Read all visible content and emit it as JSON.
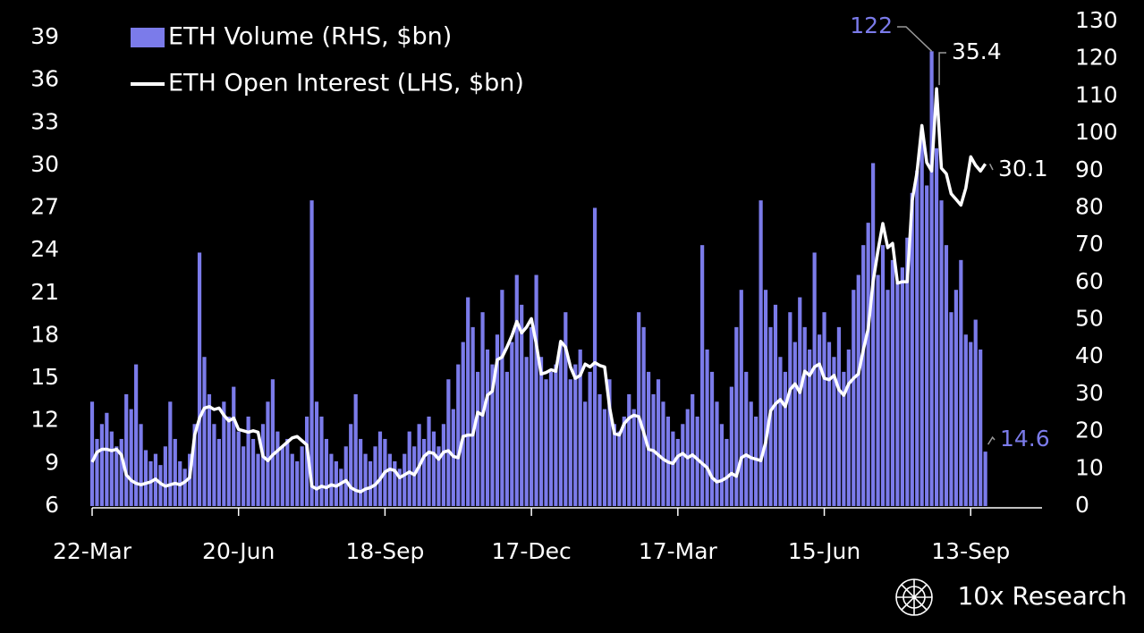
{
  "chart_data": {
    "type": "bar_line",
    "legend": "upper left",
    "brand": "10x Research",
    "categories": [
      "22-Mar",
      null,
      null,
      null,
      null,
      null,
      null,
      null,
      null,
      null,
      null,
      null,
      null,
      null,
      null,
      null,
      null,
      null,
      null,
      null,
      null,
      null,
      null,
      null,
      null,
      null,
      null,
      null,
      null,
      null,
      "20-Jun",
      null,
      null,
      null,
      null,
      null,
      null,
      null,
      null,
      null,
      null,
      null,
      null,
      null,
      null,
      null,
      null,
      null,
      null,
      null,
      null,
      null,
      null,
      null,
      null,
      null,
      null,
      null,
      null,
      null,
      "18-Sep",
      null,
      null,
      null,
      null,
      null,
      null,
      null,
      null,
      null,
      null,
      null,
      null,
      null,
      null,
      null,
      null,
      null,
      null,
      null,
      null,
      null,
      null,
      null,
      null,
      null,
      null,
      null,
      null,
      null,
      "17-Dec",
      null,
      null,
      null,
      null,
      null,
      null,
      null,
      null,
      null,
      null,
      null,
      null,
      null,
      null,
      null,
      null,
      null,
      null,
      null,
      null,
      null,
      null,
      null,
      null,
      null,
      null,
      null,
      null,
      null,
      "17-Mar",
      null,
      null,
      null,
      null,
      null,
      null,
      null,
      null,
      null,
      null,
      null,
      null,
      null,
      null,
      null,
      null,
      null,
      null,
      null,
      null,
      null,
      null,
      null,
      null,
      null,
      null,
      null,
      null,
      null,
      "15-Jun",
      null,
      null,
      null,
      null,
      null,
      null,
      null,
      null,
      null,
      null,
      null,
      null,
      null,
      null,
      null,
      null,
      null,
      null,
      null,
      null,
      null,
      null,
      null,
      null,
      null,
      null,
      null,
      null,
      null,
      "13-Sep",
      null,
      null,
      null
    ],
    "series": [
      {
        "name": "ETH Volume (RHS, $bn)",
        "color": "#7b7bea",
        "axis": "y2",
        "values": [
          28,
          18,
          22,
          25,
          20,
          16,
          18,
          30,
          26,
          38,
          22,
          15,
          12,
          14,
          11,
          16,
          28,
          18,
          12,
          10,
          14,
          22,
          68,
          40,
          30,
          22,
          18,
          28,
          24,
          32,
          20,
          16,
          24,
          18,
          14,
          22,
          28,
          34,
          20,
          16,
          18,
          14,
          12,
          16,
          24,
          82,
          28,
          24,
          18,
          14,
          12,
          10,
          16,
          22,
          30,
          18,
          14,
          12,
          16,
          20,
          18,
          14,
          12,
          10,
          14,
          20,
          16,
          22,
          18,
          24,
          20,
          16,
          22,
          34,
          26,
          38,
          44,
          56,
          48,
          36,
          52,
          42,
          38,
          46,
          58,
          36,
          44,
          62,
          54,
          40,
          48,
          62,
          40,
          34,
          36,
          38,
          44,
          52,
          34,
          38,
          42,
          28,
          36,
          80,
          30,
          26,
          34,
          22,
          20,
          24,
          30,
          26,
          52,
          48,
          36,
          30,
          34,
          28,
          24,
          20,
          18,
          22,
          26,
          30,
          24,
          70,
          42,
          36,
          28,
          22,
          18,
          32,
          48,
          58,
          36,
          28,
          24,
          82,
          58,
          48,
          54,
          40,
          36,
          52,
          44,
          56,
          48,
          42,
          68,
          46,
          52,
          44,
          40,
          48,
          36,
          42,
          58,
          62,
          70,
          76,
          92,
          62,
          70,
          58,
          66,
          60,
          64,
          72,
          84,
          90,
          100,
          86,
          122,
          96,
          82,
          70,
          52,
          58,
          66,
          46,
          44,
          50,
          42,
          14.6
        ]
      },
      {
        "name": "ETH Open Interest (LHS, $bn)",
        "color": "#ffffff",
        "values": [
          9.1,
          9.8,
          10.0,
          10.0,
          9.9,
          10.0,
          9.6,
          8.2,
          7.8,
          7.6,
          7.5,
          7.6,
          7.7,
          7.9,
          7.6,
          7.4,
          7.5,
          7.6,
          7.5,
          7.7,
          8.0,
          11.0,
          12.2,
          12.9,
          13.0,
          12.8,
          12.9,
          12.4,
          12.0,
          12.2,
          11.4,
          11.3,
          11.2,
          11.3,
          11.2,
          9.5,
          9.2,
          9.6,
          9.9,
          10.2,
          10.5,
          10.8,
          10.9,
          10.6,
          10.3,
          7.4,
          7.2,
          7.4,
          7.3,
          7.5,
          7.4,
          7.6,
          7.8,
          7.3,
          7.1,
          7.0,
          7.2,
          7.3,
          7.5,
          7.9,
          8.4,
          8.6,
          8.5,
          8.0,
          8.2,
          8.4,
          8.2,
          8.8,
          9.5,
          9.8,
          9.7,
          9.3,
          9.8,
          9.9,
          9.5,
          9.4,
          10.9,
          11.0,
          11.0,
          12.6,
          12.4,
          13.8,
          14.1,
          16.3,
          16.5,
          17.2,
          18.0,
          19.0,
          18.2,
          18.6,
          19.2,
          17.4,
          15.3,
          15.4,
          15.6,
          15.5,
          17.6,
          17.2,
          15.8,
          15.0,
          15.2,
          16.0,
          15.8,
          16.1,
          15.9,
          15.8,
          13.0,
          11.1,
          11.0,
          11.8,
          12.2,
          12.4,
          12.3,
          11.2,
          10.0,
          9.9,
          9.6,
          9.3,
          9.1,
          9.0,
          9.5,
          9.7,
          9.4,
          9.6,
          9.3,
          9.0,
          8.7,
          8.0,
          7.7,
          7.8,
          8.0,
          8.3,
          8.1,
          9.4,
          9.6,
          9.4,
          9.3,
          9.2,
          10.5,
          12.7,
          13.2,
          13.5,
          13.0,
          14.2,
          14.6,
          14.0,
          15.5,
          15.2,
          15.8,
          16.0,
          15.0,
          14.9,
          15.2,
          14.2,
          13.8,
          14.6,
          15.0,
          15.3,
          17.0,
          18.5,
          21.8,
          24.0,
          25.9,
          24.2,
          24.5,
          21.7,
          21.8,
          21.8,
          27.5,
          29.5,
          32.8,
          30.2,
          29.6,
          35.4,
          29.8,
          29.4,
          28.0,
          27.6,
          27.2,
          28.4,
          30.6,
          30.0,
          29.6,
          30.1
        ]
      }
    ],
    "ylim": [
      6,
      39
    ],
    "yticks": [
      6,
      9,
      12,
      15,
      18,
      21,
      24,
      27,
      30,
      33,
      36,
      39
    ],
    "y2lim": [
      0,
      130
    ],
    "y2ticks": [
      0,
      10,
      20,
      30,
      40,
      50,
      60,
      70,
      80,
      90,
      100,
      110,
      120,
      130
    ]
  }
}
